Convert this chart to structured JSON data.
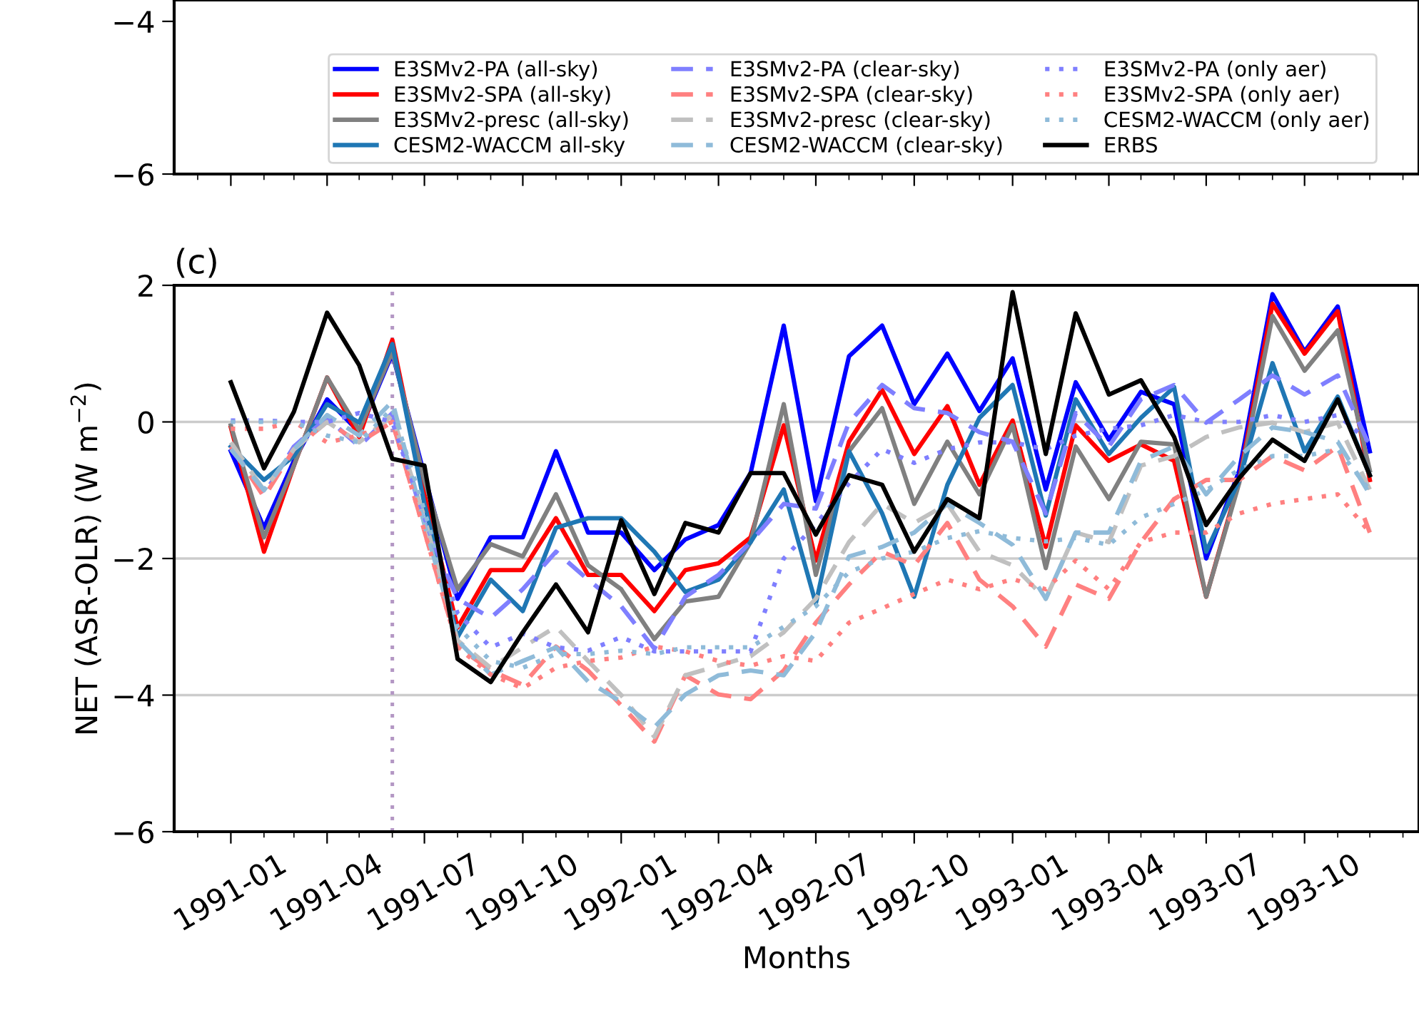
{
  "chart_data": [
    {
      "type": "line",
      "xlim": [
        "1990-11-09",
        "1994-01-16"
      ],
      "xticks": [
        {
          "value": "1991-01",
          "label": null
        },
        {
          "value": "1991-04",
          "label": null
        },
        {
          "value": "1991-07",
          "label": null
        },
        {
          "value": "1991-10",
          "label": null
        },
        {
          "value": "1992-01",
          "label": null
        },
        {
          "value": "1992-04",
          "label": null
        },
        {
          "value": "1992-07",
          "label": null
        },
        {
          "value": "1992-10",
          "label": null
        },
        {
          "value": "1993-01",
          "label": null
        },
        {
          "value": "1993-04",
          "label": null
        },
        {
          "value": "1993-07",
          "label": null
        },
        {
          "value": "1993-10",
          "label": null
        }
      ],
      "ylim": [
        -6,
        -3.72
      ],
      "yticks": [
        -6,
        -4
      ],
      "tick_labels": "y"
    },
    {
      "type": "line",
      "title": "(c)",
      "xlabel": "Months",
      "ylabel": "NET (ASR-OLR) (W m$^{−2}$)",
      "grid": "y",
      "legend": "top",
      "xlim": [
        "1990-11-09",
        "1994-01-16"
      ],
      "ylim": [
        -6,
        2
      ],
      "yticks": [
        -6,
        -4,
        -2,
        0,
        2
      ],
      "xticks": [
        "1991-01",
        "1991-04",
        "1991-07",
        "1991-10",
        "1992-01",
        "1992-04",
        "1992-07",
        "1992-10",
        "1993-01",
        "1993-04",
        "1993-07",
        "1993-10"
      ],
      "x": [
        "1991-01",
        "1991-02",
        "1991-03",
        "1991-04",
        "1991-05",
        "1991-06",
        "1991-07",
        "1991-08",
        "1991-09",
        "1991-10",
        "1991-11",
        "1991-12",
        "1992-01",
        "1992-02",
        "1992-03",
        "1992-04",
        "1992-05",
        "1992-06",
        "1992-07",
        "1992-08",
        "1992-09",
        "1992-10",
        "1992-11",
        "1992-12",
        "1993-01",
        "1993-02",
        "1993-03",
        "1993-04",
        "1993-05",
        "1993-06",
        "1993-07",
        "1993-08",
        "1993-09",
        "1993-10",
        "1993-11",
        "1993-12"
      ],
      "ref_lines": [
        {
          "axis": "x",
          "value": "1991-06",
          "color": "#b497c4",
          "line_style": "dotted"
        }
      ],
      "series": [
        {
          "name": "E3SMv2-PA (all-sky)",
          "color": "#0000ff",
          "line_style": "solid",
          "values": [
            -0.43,
            -1.55,
            -0.57,
            0.33,
            -0.15,
            1.0,
            -0.78,
            -2.59,
            -1.69,
            -1.69,
            -0.43,
            -1.62,
            -1.62,
            -2.17,
            -1.72,
            -1.51,
            -0.75,
            1.41,
            -1.16,
            0.96,
            1.41,
            0.26,
            1.0,
            0.16,
            0.93,
            -0.99,
            0.58,
            -0.26,
            0.44,
            0.26,
            -2.0,
            -0.71,
            1.87,
            1.03,
            1.69,
            -0.43
          ]
        },
        {
          "name": "E3SMv2-SPA (all-sky)",
          "color": "#ff0000",
          "line_style": "solid",
          "values": [
            -0.08,
            -1.9,
            -0.64,
            0.65,
            -0.22,
            1.2,
            -1.06,
            -3.01,
            -2.17,
            -2.17,
            -1.41,
            -2.24,
            -2.24,
            -2.77,
            -2.17,
            -2.07,
            -1.69,
            -0.05,
            -2.03,
            -0.29,
            0.47,
            -0.47,
            0.23,
            -0.92,
            0.02,
            -1.83,
            -0.05,
            -0.57,
            -0.33,
            -0.57,
            -2.56,
            -0.85,
            1.73,
            1.0,
            1.62,
            -0.85
          ]
        },
        {
          "name": "E3SMv2-presc (all-sky)",
          "color": "#808080",
          "line_style": "solid",
          "values": [
            -0.05,
            -1.69,
            -0.64,
            0.65,
            -0.12,
            1.03,
            -0.85,
            -2.45,
            -1.79,
            -1.97,
            -1.06,
            -2.1,
            -2.45,
            -3.18,
            -2.63,
            -2.56,
            -1.76,
            0.26,
            -2.24,
            -0.43,
            0.2,
            -1.2,
            -0.29,
            -1.06,
            -0.05,
            -2.14,
            -0.36,
            -1.13,
            -0.29,
            -0.33,
            -2.56,
            -0.89,
            1.55,
            0.75,
            1.34,
            -0.71
          ]
        },
        {
          "name": "CESM2-WACCM all-sky",
          "color": "#1f77b4",
          "line_style": "solid",
          "values": [
            -0.36,
            -0.85,
            -0.5,
            0.26,
            -0.01,
            1.14,
            -1.2,
            -3.15,
            -2.31,
            -2.77,
            -1.55,
            -1.41,
            -1.41,
            -1.9,
            -2.49,
            -2.31,
            -1.76,
            -0.99,
            -2.66,
            -0.43,
            -1.34,
            -2.56,
            -0.92,
            0.06,
            0.54,
            -1.37,
            0.33,
            -0.47,
            0.06,
            0.51,
            -1.9,
            -0.85,
            0.86,
            -0.43,
            0.37,
            -0.78
          ]
        },
        {
          "name": "E3SMv2-PA (clear-sky)",
          "color": "#7f7fff",
          "line_style": "dashed",
          "values": [
            -0.36,
            -1.06,
            -0.36,
            0.06,
            -0.36,
            0.13,
            -1.48,
            -2.59,
            -2.87,
            -2.45,
            -1.9,
            -2.31,
            -2.7,
            -3.32,
            -2.56,
            -2.24,
            -1.76,
            -1.2,
            -1.27,
            -0.01,
            0.54,
            0.2,
            0.13,
            -0.15,
            -0.29,
            -1.34,
            0.13,
            -0.36,
            0.33,
            0.54,
            -0.01,
            0.33,
            0.68,
            0.4,
            0.68,
            -0.36
          ]
        },
        {
          "name": "E3SMv2-SPA (clear-sky)",
          "color": "#ff8080",
          "line_style": "dashed",
          "values": [
            -0.36,
            -1.1,
            -0.4,
            0.0,
            -0.3,
            0.0,
            -1.6,
            -3.29,
            -3.64,
            -3.85,
            -3.29,
            -3.64,
            -4.15,
            -4.68,
            -3.71,
            -3.99,
            -4.06,
            -3.64,
            -2.94,
            -2.38,
            -1.9,
            -2.1,
            -1.48,
            -2.31,
            -2.7,
            -3.29,
            -2.38,
            -2.59,
            -1.76,
            -1.13,
            -0.85,
            -0.85,
            -0.5,
            -0.71,
            -0.36,
            -1.62
          ]
        },
        {
          "name": "E3SMv2-presc (clear-sky)",
          "color": "#c0c0c0",
          "line_style": "dashed",
          "values": [
            -0.3,
            -1.0,
            -0.4,
            0.0,
            -0.3,
            0.1,
            -1.4,
            -3.2,
            -3.6,
            -3.3,
            -3.0,
            -3.5,
            -4.0,
            -4.61,
            -3.71,
            -3.57,
            -3.43,
            -3.08,
            -2.59,
            -1.76,
            -1.2,
            -1.48,
            -1.2,
            -1.9,
            -2.1,
            -2.59,
            -1.62,
            -1.76,
            -0.64,
            -0.5,
            -0.22,
            -0.08,
            -0.01,
            -0.15,
            -0.01,
            -0.99
          ]
        },
        {
          "name": "CESM2-WACCM (clear-sky)",
          "color": "#8fbbd9",
          "line_style": "dashed",
          "values": [
            -0.4,
            -1.0,
            -0.4,
            0.1,
            -0.2,
            0.3,
            -1.5,
            -3.2,
            -3.7,
            -3.5,
            -3.3,
            -3.8,
            -4.1,
            -4.47,
            -3.99,
            -3.71,
            -3.64,
            -3.71,
            -3.08,
            -1.97,
            -1.83,
            -1.62,
            -1.2,
            -1.48,
            -1.8,
            -2.59,
            -1.62,
            -1.62,
            -0.57,
            -0.36,
            -1.06,
            -0.5,
            -0.08,
            -0.15,
            -0.29,
            -1.06
          ]
        },
        {
          "name": "E3SMv2-PA (only aer)",
          "color": "#7f7fff",
          "line_style": "dotted",
          "values": [
            0.02,
            0.02,
            0.0,
            0.0,
            0.13,
            0.0,
            -1.4,
            -2.8,
            -3.3,
            -3.1,
            -3.3,
            -3.35,
            -3.15,
            -3.36,
            -3.36,
            -3.36,
            -3.36,
            -2.0,
            -1.5,
            -0.9,
            -0.4,
            -0.6,
            -0.4,
            -0.3,
            -0.3,
            -0.4,
            -0.2,
            -0.1,
            -0.05,
            0.1,
            0.0,
            0.0,
            0.1,
            0.0,
            0.1,
            -0.3
          ]
        },
        {
          "name": "E3SMv2-SPA (only aer)",
          "color": "#ff8080",
          "line_style": "dotted",
          "values": [
            -0.1,
            -0.1,
            0.0,
            -0.3,
            -0.2,
            0.0,
            -1.6,
            -3.3,
            -3.7,
            -3.9,
            -3.6,
            -3.5,
            -3.45,
            -3.29,
            -3.36,
            -3.5,
            -3.57,
            -3.43,
            -3.5,
            -2.94,
            -2.73,
            -2.52,
            -2.31,
            -2.45,
            -2.3,
            -2.45,
            -2.03,
            -2.45,
            -1.76,
            -1.62,
            -1.62,
            -1.34,
            -1.2,
            -1.13,
            -1.06,
            -1.62
          ]
        },
        {
          "name": "CESM2-WACCM (only aer)",
          "color": "#8fbbd9",
          "line_style": "dotted",
          "values": [
            0.0,
            0.0,
            0.0,
            -0.2,
            -0.3,
            0.2,
            -1.3,
            -3.0,
            -3.5,
            -3.6,
            -3.4,
            -3.4,
            -3.35,
            -3.4,
            -3.3,
            -3.3,
            -3.3,
            -3.0,
            -2.7,
            -2.2,
            -2.0,
            -1.9,
            -1.7,
            -1.6,
            -1.7,
            -1.75,
            -1.7,
            -1.8,
            -1.4,
            -1.2,
            -1.0,
            -0.7,
            -0.5,
            -0.5,
            -0.4,
            -1.0
          ]
        },
        {
          "name": "ERBS",
          "color": "#000000",
          "line_style": "solid",
          "values": [
            0.58,
            -0.68,
            0.15,
            1.6,
            0.83,
            -0.54,
            -0.64,
            -3.47,
            -3.81,
            -3.08,
            -2.38,
            -3.08,
            -1.44,
            -2.52,
            -1.48,
            -1.62,
            -0.75,
            -0.75,
            -1.65,
            -0.78,
            -0.92,
            -1.9,
            -1.13,
            -1.41,
            1.9,
            -0.47,
            1.59,
            0.4,
            0.61,
            -0.22,
            -1.51,
            -0.82,
            -0.26,
            -0.57,
            0.33,
            -0.78
          ]
        }
      ]
    }
  ]
}
